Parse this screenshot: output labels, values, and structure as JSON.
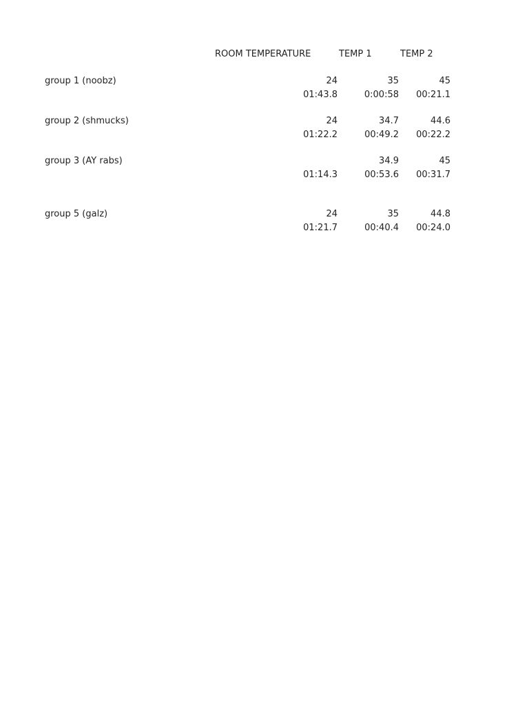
{
  "headers": [
    "ROOM TEMPERATURE",
    "TEMP 1",
    "TEMP 2"
  ],
  "groups": [
    {
      "label": "group 1 (noobz)",
      "temps": [
        "24",
        "35",
        "45"
      ],
      "times": [
        "01:43.8",
        "0:00:58",
        "00:21.1"
      ]
    },
    {
      "label": "group 2 (shmucks)",
      "temps": [
        "24",
        "34.7",
        "44.6"
      ],
      "times": [
        "01:22.2",
        "00:49.2",
        "00:22.2"
      ]
    },
    {
      "label": "group 3 (AY rabs)",
      "temps": [
        "",
        "34.9",
        "45"
      ],
      "times": [
        "01:14.3",
        "00:53.6",
        "00:31.7"
      ]
    },
    {
      "label": "group 5 (galz)",
      "temps": [
        "24",
        "35",
        "44.8"
      ],
      "times": [
        "01:21.7",
        "00:40.4",
        "00:24.0"
      ]
    }
  ]
}
